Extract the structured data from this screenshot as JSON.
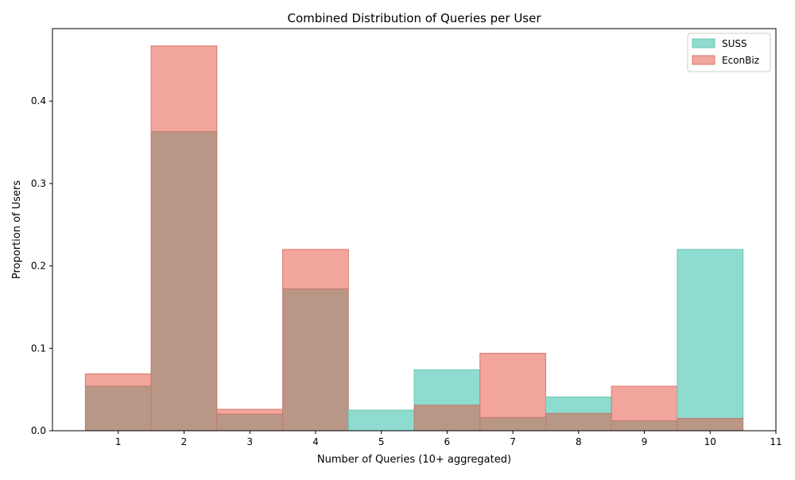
{
  "chart_data": {
    "type": "bar",
    "title": "Combined Distribution of Queries per User",
    "xlabel": "Number of Queries (10+ aggregated)",
    "ylabel": "Proportion of Users",
    "categories": [
      1,
      2,
      3,
      4,
      5,
      6,
      7,
      8,
      9,
      10
    ],
    "x_ticks": [
      "1",
      "2",
      "3",
      "4",
      "5",
      "6",
      "7",
      "8",
      "9",
      "10",
      "11"
    ],
    "y_ticks": [
      "0.0",
      "0.1",
      "0.2",
      "0.3",
      "0.4"
    ],
    "xlim": [
      0,
      11
    ],
    "ylim": [
      0,
      0.488
    ],
    "grid": false,
    "legend_position": "top-right",
    "overlay": true,
    "series": [
      {
        "name": "SUSS",
        "color": "#8ddccf",
        "edge": "#6fc4b4",
        "values": [
          0.054,
          0.363,
          0.02,
          0.172,
          0.025,
          0.074,
          0.016,
          0.041,
          0.012,
          0.22
        ]
      },
      {
        "name": "EconBiz",
        "color": "#f1a59c",
        "edge": "#d9776c",
        "values": [
          0.069,
          0.467,
          0.026,
          0.22,
          0.0,
          0.031,
          0.094,
          0.021,
          0.054,
          0.015
        ]
      }
    ],
    "overlap_color": "#b99787",
    "overlap_edge": "#c07a6c"
  }
}
